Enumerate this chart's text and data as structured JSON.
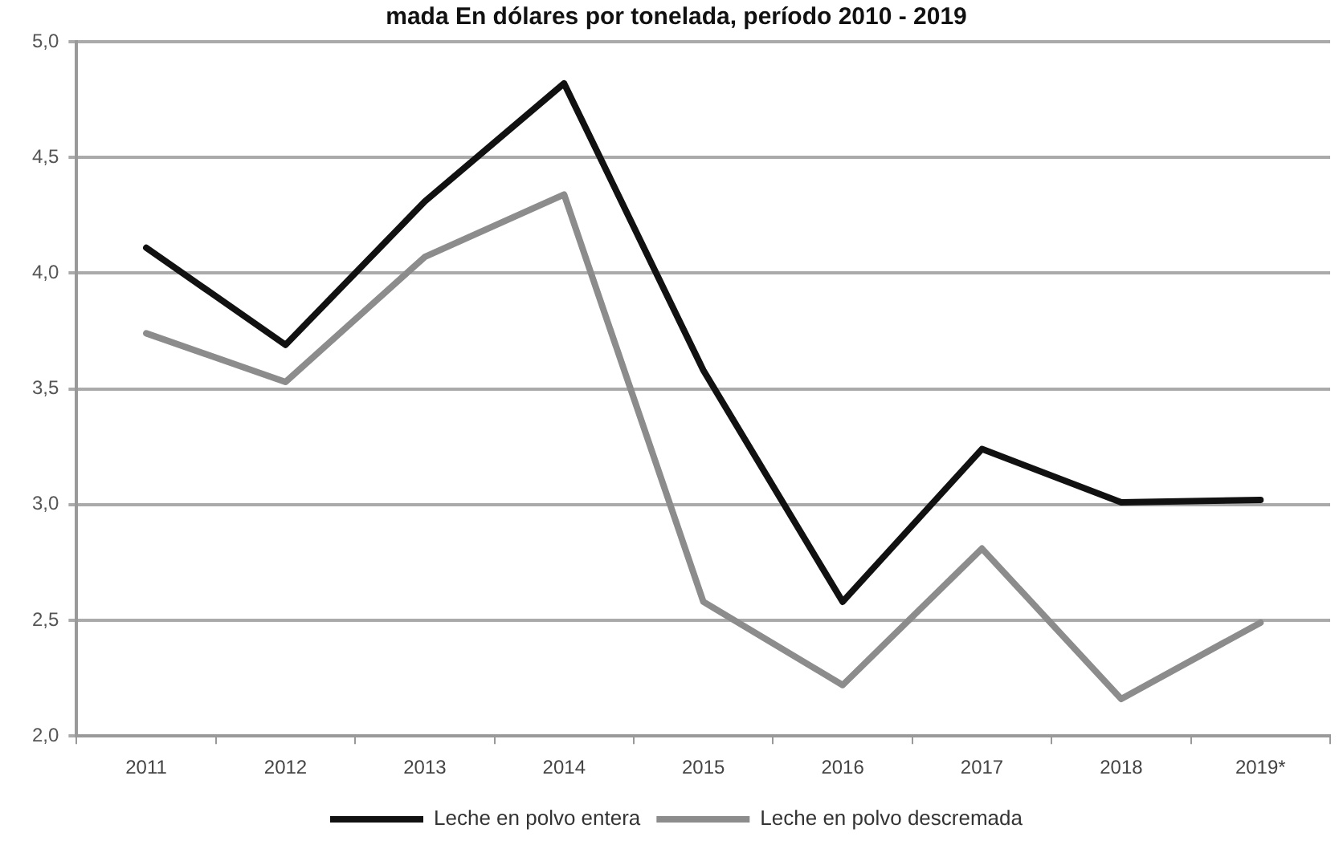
{
  "chart_data": {
    "type": "line",
    "title": "mada En dólares por tonelada, período 2010 - 2019",
    "categories": [
      "2011",
      "2012",
      "2013",
      "2014",
      "2015",
      "2016",
      "2017",
      "2018",
      "2019*"
    ],
    "series": [
      {
        "name": "Leche en polvo entera",
        "color": "#111111",
        "values": [
          4.11,
          3.69,
          4.31,
          4.82,
          3.58,
          2.58,
          3.24,
          3.01,
          3.02
        ]
      },
      {
        "name": "Leche en polvo descremada",
        "color": "#8c8c8c",
        "values": [
          3.74,
          3.53,
          4.07,
          4.34,
          2.58,
          2.22,
          2.81,
          2.16,
          2.49
        ]
      }
    ],
    "ylim": [
      2,
      5
    ],
    "yticks": [
      {
        "value": 2,
        "label": "2,0"
      },
      {
        "value": 2.5,
        "label": "2,5"
      },
      {
        "value": 3,
        "label": "3,0"
      },
      {
        "value": 3.5,
        "label": "3,5"
      },
      {
        "value": 4,
        "label": "4,0"
      },
      {
        "value": 4.5,
        "label": "4,5"
      },
      {
        "value": 5,
        "label": "5,0"
      }
    ],
    "grid": "y",
    "legend": "bottom",
    "marker": "none",
    "line_style": "solid"
  }
}
